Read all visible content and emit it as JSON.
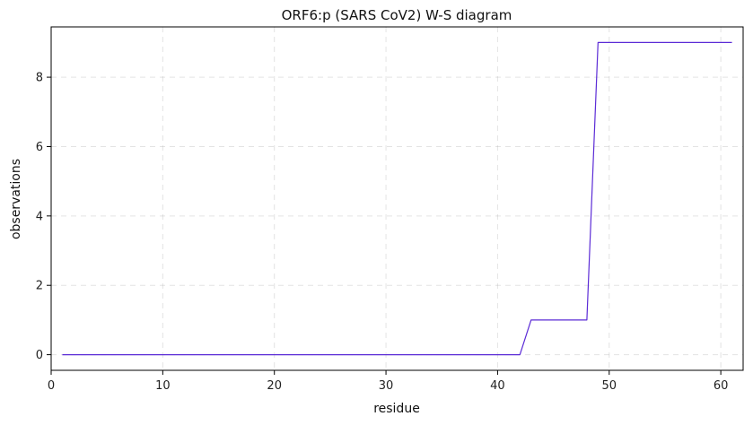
{
  "chart_data": {
    "type": "line",
    "title": "ORF6:p (SARS CoV2) W-S diagram",
    "xlabel": "residue",
    "ylabel": "observations",
    "xlim": [
      0,
      62
    ],
    "ylim": [
      -0.45,
      9.45
    ],
    "xticks": [
      0,
      10,
      20,
      30,
      40,
      50,
      60
    ],
    "yticks": [
      0,
      2,
      4,
      6,
      8
    ],
    "grid": true,
    "series": [
      {
        "color": "#5b2bd6",
        "x": [
          1,
          2,
          3,
          4,
          5,
          6,
          7,
          8,
          9,
          10,
          11,
          12,
          13,
          14,
          15,
          16,
          17,
          18,
          19,
          20,
          21,
          22,
          23,
          24,
          25,
          26,
          27,
          28,
          29,
          30,
          31,
          32,
          33,
          34,
          35,
          36,
          37,
          38,
          39,
          40,
          41,
          42,
          43,
          44,
          45,
          46,
          47,
          48,
          49,
          50,
          51,
          52,
          53,
          54,
          55,
          56,
          57,
          58,
          59,
          60,
          61
        ],
        "y": [
          0,
          0,
          0,
          0,
          0,
          0,
          0,
          0,
          0,
          0,
          0,
          0,
          0,
          0,
          0,
          0,
          0,
          0,
          0,
          0,
          0,
          0,
          0,
          0,
          0,
          0,
          0,
          0,
          0,
          0,
          0,
          0,
          0,
          0,
          0,
          0,
          0,
          0,
          0,
          0,
          0,
          0,
          1,
          1,
          1,
          1,
          1,
          1,
          9,
          9,
          9,
          9,
          9,
          9,
          9,
          9,
          9,
          9,
          9,
          9,
          9
        ]
      }
    ]
  }
}
